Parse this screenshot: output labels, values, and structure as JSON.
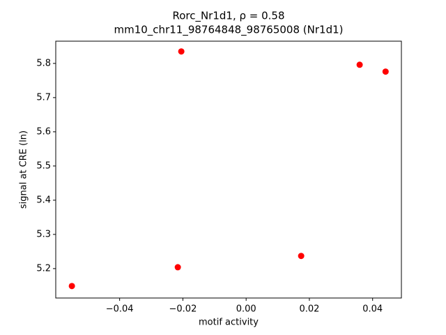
{
  "chart_data": {
    "type": "scatter",
    "title": "Rorc_Nr1d1, ρ = 0.58",
    "subtitle": "mm10_chr11_98764848_98765008 (Nr1d1)",
    "x_label": "motif activity",
    "y_label": "signal at CRE (ln)",
    "color": "#ff0000",
    "x": [
      -0.0551,
      -0.0205,
      -0.0216,
      0.0174,
      0.0359,
      0.0441
    ],
    "values": [
      5.149,
      5.835,
      5.204,
      5.237,
      5.796,
      5.776
    ],
    "xlim": [
      -0.0602,
      0.0491
    ],
    "ylim": [
      5.114,
      5.865
    ],
    "xticks": [
      {
        "value": -0.04,
        "label": "−0.04"
      },
      {
        "value": -0.02,
        "label": "−0.02"
      },
      {
        "value": 0,
        "label": "0.00"
      },
      {
        "value": 0.02,
        "label": "0.02"
      },
      {
        "value": 0.04,
        "label": "0.04"
      }
    ],
    "yticks": [
      5.2,
      5.3,
      5.4,
      5.5,
      5.6,
      5.7,
      5.8
    ],
    "grid": false
  }
}
